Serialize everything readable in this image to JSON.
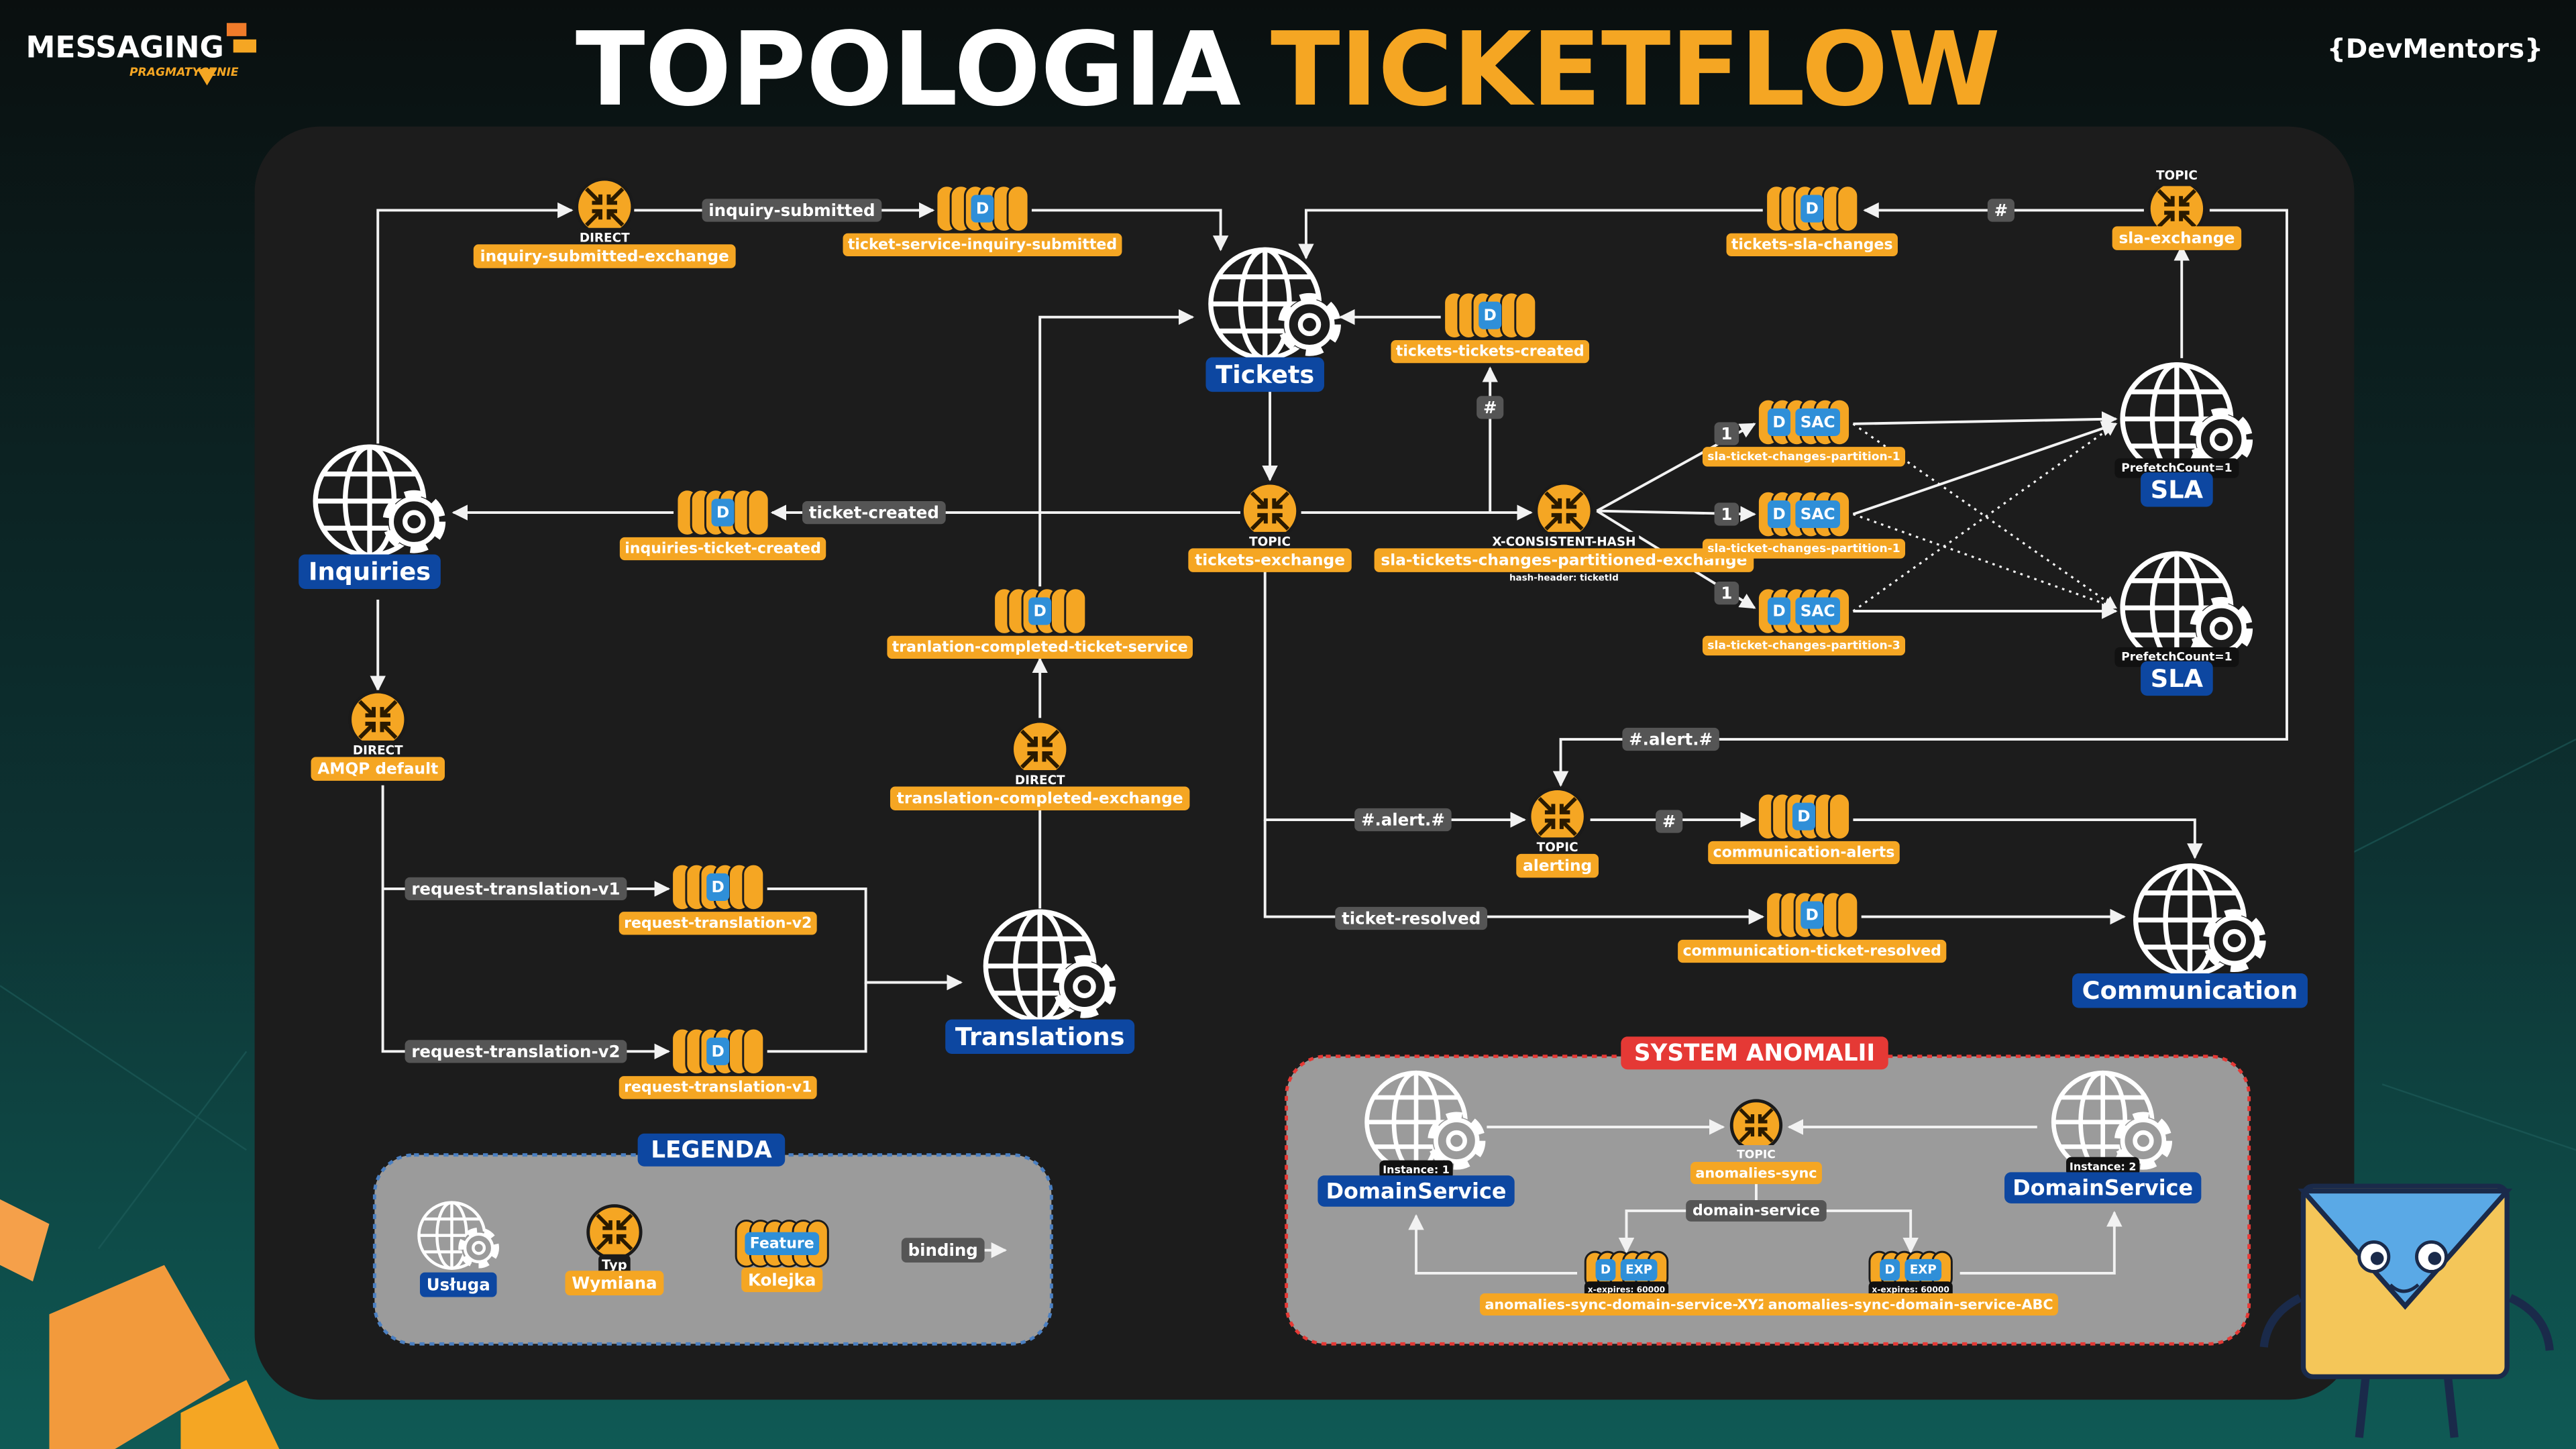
{
  "header": {
    "brand": "MESSAGING",
    "brand_sub": "PRAGMATYCZNIE",
    "title": "TOPOLOGIA",
    "title_highlight": "TICKETFLOW",
    "logo": "{DevMentors}"
  },
  "services": [
    {
      "label": "Tickets"
    },
    {
      "label": "Inquiries"
    },
    {
      "label": "Translations"
    },
    {
      "label": "SLA",
      "note": "PrefetchCount=1"
    },
    {
      "label": "SLA",
      "note": "PrefetchCount=1"
    },
    {
      "label": "Communication"
    }
  ],
  "exchanges": [
    {
      "type": "DIRECT",
      "name": "inquiry-submitted-exchange"
    },
    {
      "type": "TOPIC",
      "name": "tickets-exchange"
    },
    {
      "type": "X-CONSISTENT-HASH",
      "name": "sla-tickets-changes-partitioned-exchange",
      "note": "hash-header: ticketId"
    },
    {
      "type": "TOPIC",
      "name": "sla-exchange"
    },
    {
      "type": "DIRECT",
      "name": "AMQP default"
    },
    {
      "type": "DIRECT",
      "name": "translation-completed-exchange"
    },
    {
      "type": "TOPIC",
      "name": "alerting"
    }
  ],
  "queues": [
    {
      "name": "ticket-service-inquiry-submitted",
      "features": [
        "D"
      ]
    },
    {
      "name": "tickets-sla-changes",
      "features": [
        "D"
      ]
    },
    {
      "name": "tickets-tickets-created",
      "features": [
        "D"
      ]
    },
    {
      "name": "inquiries-ticket-created",
      "features": [
        "D"
      ]
    },
    {
      "name": "tranlation-completed-ticket-service",
      "features": [
        "D"
      ]
    },
    {
      "name": "request-translation-v2",
      "features": [
        "D"
      ]
    },
    {
      "name": "request-translation-v1",
      "features": [
        "D"
      ]
    },
    {
      "name": "sla-ticket-changes-partition-1",
      "features": [
        "D",
        "SAC"
      ]
    },
    {
      "name": "sla-ticket-changes-partition-1",
      "features": [
        "D",
        "SAC"
      ]
    },
    {
      "name": "sla-ticket-changes-partition-3",
      "features": [
        "D",
        "SAC"
      ]
    },
    {
      "name": "communication-alerts",
      "features": [
        "D"
      ]
    },
    {
      "name": "communication-ticket-resolved",
      "features": [
        "D"
      ]
    }
  ],
  "bindings": [
    {
      "label": "inquiry-submitted"
    },
    {
      "label": "ticket-created"
    },
    {
      "label": "#"
    },
    {
      "label": "#"
    },
    {
      "label": "1"
    },
    {
      "label": "1"
    },
    {
      "label": "1"
    },
    {
      "label": "#.alert.#"
    },
    {
      "label": "#.alert.#"
    },
    {
      "label": "#"
    },
    {
      "label": "ticket-resolved"
    },
    {
      "label": "request-translation-v1"
    },
    {
      "label": "request-translation-v2"
    }
  ],
  "legend": {
    "title": "LEGENDA",
    "items": [
      {
        "label": "Usługa"
      },
      {
        "badge": "Typ",
        "label": "Wymiana"
      },
      {
        "badge": "Feature",
        "label": "Kolejka"
      },
      {
        "label": "binding"
      }
    ]
  },
  "anomalies": {
    "title": "SYSTEM ANOMALII",
    "services": [
      {
        "label": "DomainService",
        "instance": "Instance: 1"
      },
      {
        "label": "DomainService",
        "instance": "Instance: 2"
      }
    ],
    "exchange": {
      "type": "TOPIC",
      "name": "anomalies-sync"
    },
    "binding": "domain-service",
    "queues": [
      {
        "name": "anomalies-sync-domain-service-XYZ",
        "features": [
          "D",
          "EXP"
        ],
        "note": "x-expires: 60000"
      },
      {
        "name": "anomalies-sync-domain-service-ABC",
        "features": [
          "D",
          "EXP"
        ],
        "note": "x-expires: 60000"
      }
    ]
  }
}
